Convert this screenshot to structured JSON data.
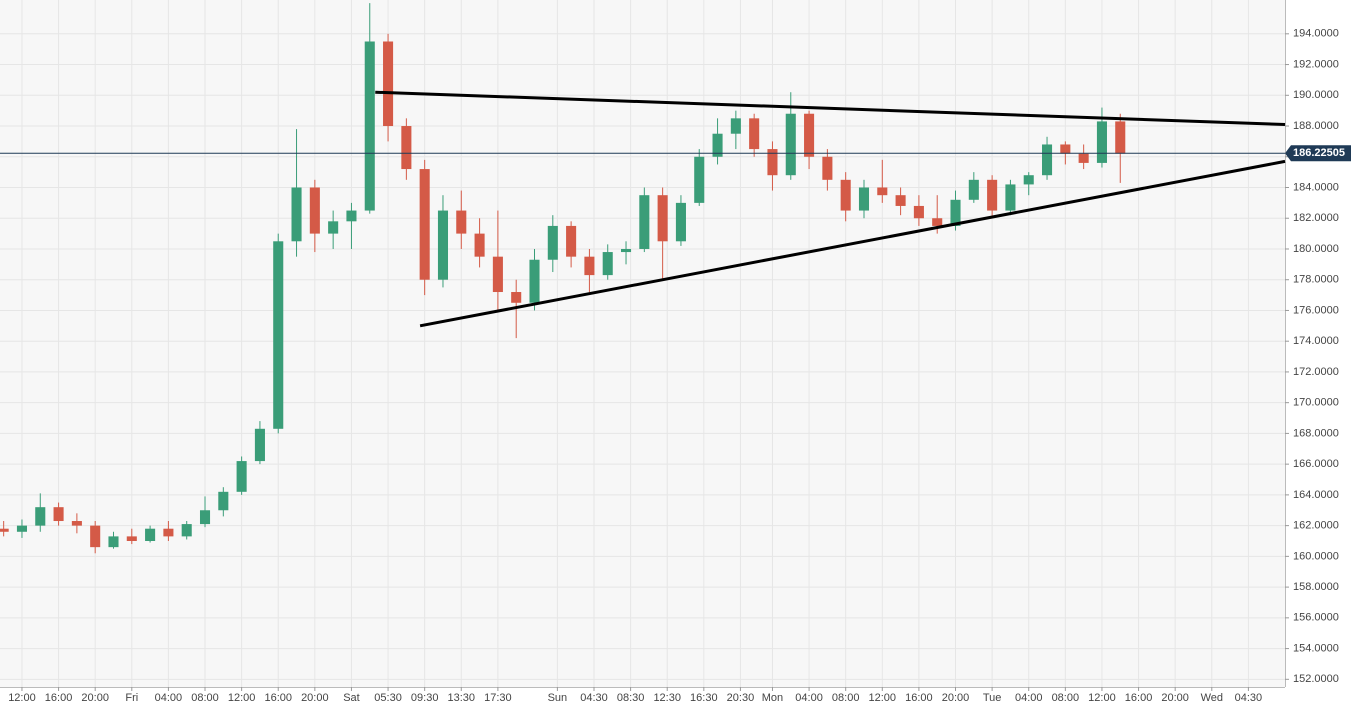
{
  "chart_data": {
    "type": "candlestick",
    "up_color": "#3a9d78",
    "down_color": "#d45a47",
    "grid": true,
    "xlim": [
      -2.4,
      138
    ],
    "ylim": [
      151.5,
      196.2
    ],
    "xticks": [
      {
        "value": 0,
        "label": "12:00"
      },
      {
        "value": 4,
        "label": "16:00"
      },
      {
        "value": 8,
        "label": "20:00"
      },
      {
        "value": 12,
        "label": "Fri"
      },
      {
        "value": 16,
        "label": "04:00"
      },
      {
        "value": 20,
        "label": "08:00"
      },
      {
        "value": 24,
        "label": "12:00"
      },
      {
        "value": 28,
        "label": "16:00"
      },
      {
        "value": 32,
        "label": "20:00"
      },
      {
        "value": 36,
        "label": "Sat"
      },
      {
        "value": 40,
        "label": "05:30"
      },
      {
        "value": 44,
        "label": "09:30"
      },
      {
        "value": 48,
        "label": "13:30"
      },
      {
        "value": 52,
        "label": "17:30"
      },
      {
        "value": 58.5,
        "label": "Sun"
      },
      {
        "value": 62.5,
        "label": "04:30"
      },
      {
        "value": 66.5,
        "label": "08:30"
      },
      {
        "value": 70.5,
        "label": "12:30"
      },
      {
        "value": 74.5,
        "label": "16:30"
      },
      {
        "value": 78.5,
        "label": "20:30"
      },
      {
        "value": 82,
        "label": "Mon"
      },
      {
        "value": 86,
        "label": "04:00"
      },
      {
        "value": 90,
        "label": "08:00"
      },
      {
        "value": 94,
        "label": "12:00"
      },
      {
        "value": 98,
        "label": "16:00"
      },
      {
        "value": 102,
        "label": "20:00"
      },
      {
        "value": 106,
        "label": "Tue"
      },
      {
        "value": 110,
        "label": "04:00"
      },
      {
        "value": 114,
        "label": "08:00"
      },
      {
        "value": 118,
        "label": "12:00"
      },
      {
        "value": 122,
        "label": "16:00"
      },
      {
        "value": 126,
        "label": "20:00"
      },
      {
        "value": 130,
        "label": "Wed"
      },
      {
        "value": 134,
        "label": "04:30"
      }
    ],
    "yticks": [
      {
        "value": 152,
        "label": "152.0000"
      },
      {
        "value": 154,
        "label": "154.0000"
      },
      {
        "value": 156,
        "label": "156.0000"
      },
      {
        "value": 158,
        "label": "158.0000"
      },
      {
        "value": 160,
        "label": "160.0000"
      },
      {
        "value": 162,
        "label": "162.0000"
      },
      {
        "value": 164,
        "label": "164.0000"
      },
      {
        "value": 166,
        "label": "166.0000"
      },
      {
        "value": 168,
        "label": "168.0000"
      },
      {
        "value": 170,
        "label": "170.0000"
      },
      {
        "value": 172,
        "label": "172.0000"
      },
      {
        "value": 174,
        "label": "174.0000"
      },
      {
        "value": 176,
        "label": "176.0000"
      },
      {
        "value": 178,
        "label": "178.0000"
      },
      {
        "value": 180,
        "label": "180.0000"
      },
      {
        "value": 182,
        "label": "182.0000"
      },
      {
        "value": 184,
        "label": "184.0000"
      },
      {
        "value": 186,
        "label": "186.0000"
      },
      {
        "value": 188,
        "label": "188.0000"
      },
      {
        "value": 190,
        "label": "190.0000"
      },
      {
        "value": 192,
        "label": "192.0000"
      },
      {
        "value": 194,
        "label": "194.0000"
      }
    ],
    "last_price": 186.22505,
    "candles": {
      "x": [
        -2,
        0,
        2,
        4,
        6,
        8,
        10,
        12,
        14,
        16,
        18,
        20,
        22,
        24,
        26,
        28,
        30,
        32,
        34,
        36,
        38,
        40,
        42,
        44,
        46,
        48,
        50,
        52,
        54,
        56,
        58,
        60,
        62,
        64,
        66,
        68,
        70,
        72,
        74,
        76,
        78,
        80,
        82,
        84,
        86,
        88,
        90,
        92,
        94,
        96,
        98,
        100,
        102,
        104,
        106,
        108,
        110,
        112,
        114,
        116,
        118,
        120
      ],
      "open": [
        161.8,
        161.6,
        162.0,
        163.2,
        162.3,
        162.0,
        160.6,
        161.3,
        161.0,
        161.8,
        161.3,
        162.1,
        163.0,
        164.2,
        166.2,
        168.3,
        180.5,
        184.0,
        181.0,
        181.8,
        182.5,
        193.5,
        188.0,
        185.2,
        178.0,
        182.5,
        181.0,
        179.5,
        177.2,
        176.5,
        179.3,
        181.5,
        179.5,
        178.3,
        179.8,
        180.0,
        183.5,
        180.5,
        183.0,
        186.0,
        187.5,
        188.5,
        186.5,
        184.8,
        188.8,
        186.0,
        184.5,
        182.5,
        184.0,
        183.5,
        182.8,
        182.0,
        181.5,
        183.2,
        184.5,
        182.5,
        184.2,
        184.8,
        186.8,
        186.2,
        185.6,
        188.3
      ],
      "high": [
        162.3,
        162.4,
        164.1,
        163.5,
        162.8,
        162.3,
        161.6,
        161.8,
        162.0,
        162.3,
        162.3,
        163.9,
        164.5,
        166.5,
        168.8,
        181.0,
        187.8,
        184.5,
        182.5,
        183.0,
        196.0,
        194.0,
        188.5,
        185.8,
        183.5,
        183.8,
        182.0,
        182.5,
        178.0,
        180.0,
        182.2,
        181.8,
        180.0,
        180.3,
        180.5,
        184.0,
        184.0,
        183.5,
        186.5,
        188.5,
        189.0,
        188.8,
        187.0,
        190.2,
        189.0,
        186.5,
        185.0,
        184.5,
        185.8,
        184.0,
        183.5,
        183.5,
        183.8,
        185.0,
        184.8,
        184.5,
        185.0,
        187.3,
        187.0,
        186.8,
        189.2,
        188.8
      ],
      "low": [
        161.3,
        161.2,
        161.6,
        162.0,
        161.5,
        160.2,
        160.5,
        160.8,
        160.9,
        161.0,
        161.1,
        161.9,
        162.6,
        164.0,
        166.0,
        168.0,
        179.5,
        179.8,
        180.0,
        180.0,
        182.3,
        187.0,
        184.5,
        177.0,
        177.5,
        180.0,
        178.8,
        176.0,
        174.2,
        176.0,
        178.5,
        178.8,
        177.2,
        178.0,
        179.0,
        179.8,
        178.0,
        180.2,
        182.8,
        185.5,
        186.5,
        186.0,
        183.8,
        184.5,
        185.2,
        183.8,
        181.8,
        182.0,
        183.0,
        182.2,
        181.5,
        181.0,
        181.2,
        183.0,
        182.0,
        182.2,
        183.5,
        184.5,
        185.5,
        185.2,
        185.3,
        184.3
      ],
      "close": [
        161.6,
        162.0,
        163.2,
        162.3,
        162.0,
        160.6,
        161.3,
        161.0,
        161.8,
        161.3,
        162.1,
        163.0,
        164.2,
        166.2,
        168.3,
        180.5,
        184.0,
        181.0,
        181.8,
        182.5,
        193.5,
        188.0,
        185.2,
        178.0,
        182.5,
        181.0,
        179.5,
        177.2,
        176.5,
        179.3,
        181.5,
        179.5,
        178.3,
        179.8,
        180.0,
        183.5,
        180.5,
        183.0,
        186.0,
        187.5,
        188.5,
        186.5,
        184.8,
        188.8,
        186.0,
        184.5,
        182.5,
        184.0,
        183.5,
        182.8,
        182.0,
        181.5,
        183.2,
        184.5,
        182.5,
        184.2,
        184.8,
        186.8,
        186.2,
        185.6,
        188.3,
        186.2
      ]
    },
    "trend_lines": [
      {
        "x": [
          38.6,
          138
        ],
        "y": [
          190.2,
          188.1
        ]
      },
      {
        "x": [
          43.5,
          138
        ],
        "y": [
          175.0,
          185.7
        ]
      }
    ]
  }
}
